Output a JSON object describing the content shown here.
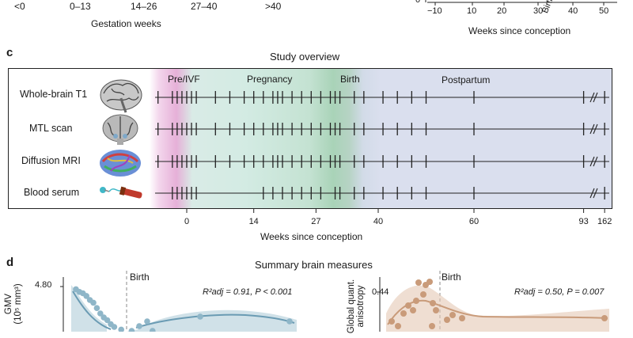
{
  "top": {
    "gestation_ticks": [
      "<0",
      "0–13",
      "14–26",
      "27–40",
      ">40"
    ],
    "gestation_xlabel": "Gestation weeks",
    "right_ticks": [
      "−10",
      "0",
      "10",
      "20",
      "30",
      "40",
      "50"
    ],
    "right_zero_label": "0",
    "birth_rotated": "Birth",
    "right_xlabel": "Weeks since conception"
  },
  "panel_c": {
    "letter": "c",
    "title": "Study overview",
    "phases": {
      "pre": "Pre/IVF",
      "pregnancy": "Pregnancy",
      "birth": "Birth",
      "postpartum": "Postpartum"
    },
    "rows": [
      {
        "label": "Whole-brain T1",
        "icon": "brain-sagittal-icon"
      },
      {
        "label": "MTL scan",
        "icon": "brain-coronal-icon"
      },
      {
        "label": "Diffusion MRI",
        "icon": "tractography-icon"
      },
      {
        "label": "Blood serum",
        "icon": "blood-tube-icon"
      }
    ],
    "scan_weeks": {
      "t1": [
        -6,
        -3,
        -2,
        -1,
        0,
        1,
        2,
        6,
        9,
        12,
        14,
        16,
        18,
        19,
        20,
        22,
        24,
        26,
        28,
        30,
        31,
        32,
        35,
        37,
        41,
        44,
        47,
        50,
        60,
        93,
        162
      ],
      "mtl": [
        -6,
        -3,
        -2,
        -1,
        0,
        1,
        2,
        6,
        9,
        12,
        14,
        16,
        18,
        19,
        20,
        22,
        24,
        26,
        28,
        30,
        31,
        32,
        35,
        37,
        41,
        44,
        47,
        50,
        60,
        93,
        162
      ],
      "diffusion": [
        -6,
        -3,
        -2,
        -1,
        0,
        1,
        2,
        6,
        9,
        12,
        14,
        16,
        18,
        19,
        20,
        22,
        24,
        26,
        28,
        30,
        31,
        32,
        35,
        37,
        41,
        44,
        47,
        50,
        60,
        93,
        162
      ],
      "serum": [
        -3,
        -2,
        -1,
        0,
        1,
        2,
        16,
        18,
        20,
        22,
        24,
        26,
        28,
        31,
        32,
        35,
        37,
        41,
        44,
        47,
        50,
        60,
        162
      ]
    },
    "axis_ticks": [
      "0",
      "14",
      "27",
      "40",
      "60",
      "93",
      "162"
    ],
    "axis_label": "Weeks since conception"
  },
  "panel_d": {
    "letter": "d",
    "title": "Summary brain measures",
    "left": {
      "ylabel_line1": "GMV",
      "ylabel_line2": "(10⁵ mm³)",
      "ytick": "4.80",
      "birth": "Birth",
      "stat": "R²adj = 0.91, P < 0.001",
      "points": [
        [
          -2,
          4.78
        ],
        [
          -1,
          4.76
        ],
        [
          0,
          4.75
        ],
        [
          1,
          4.73
        ],
        [
          2,
          4.7
        ],
        [
          3,
          4.68
        ],
        [
          4,
          4.64
        ],
        [
          5,
          4.6
        ],
        [
          6,
          4.57
        ],
        [
          7,
          4.55
        ],
        [
          8,
          4.52
        ],
        [
          9,
          4.5
        ],
        [
          11,
          4.48
        ],
        [
          14,
          4.47
        ],
        [
          16,
          4.46
        ],
        [
          20,
          4.47
        ],
        [
          22,
          4.46
        ]
      ]
    },
    "right": {
      "ylabel_line1": "Global quant.",
      "ylabel_line2": "anisotropy",
      "ytick": "0.44",
      "birth": "Birth",
      "stat": "R²adj = 0.50, P = 0.007"
    }
  },
  "colors": {
    "pink": "#e6b0d8",
    "teal": "#c4e2d2",
    "green": "#a9d3b8",
    "lavender": "#dadfee",
    "blue_fit": "#6a9bb3",
    "tan_fit": "#c99b7a"
  }
}
